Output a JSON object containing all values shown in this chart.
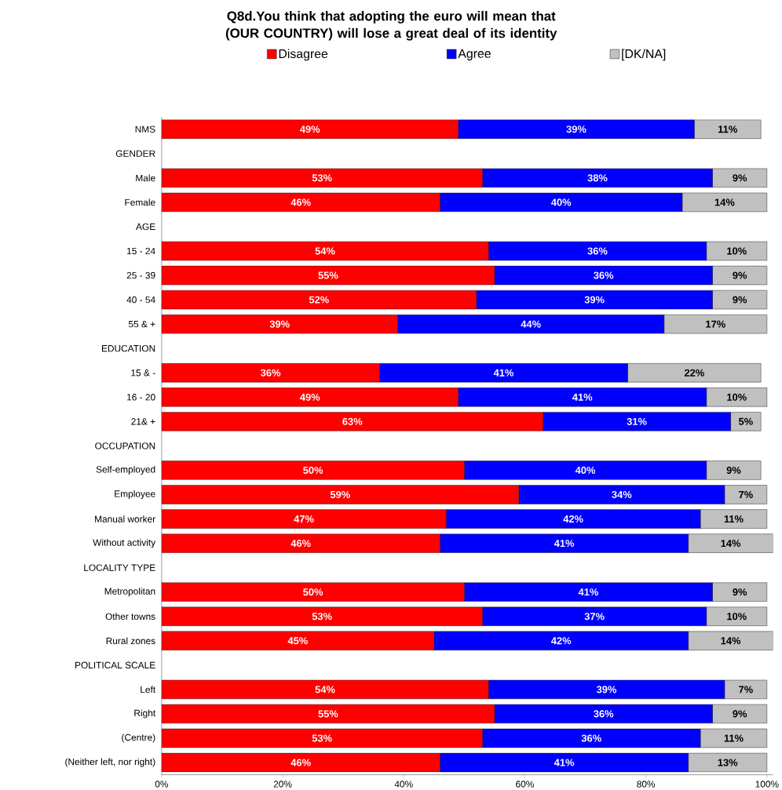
{
  "chart_data": {
    "type": "bar",
    "orientation": "horizontal",
    "stacked": true,
    "title": "Q8d.You think that adopting the euro will mean that (OUR COUNTRY) will lose a great deal of its identity",
    "categories": [
      "NMS",
      "GENDER",
      "Male",
      "Female",
      "AGE",
      "15 - 24",
      "25 - 39",
      "40 - 54",
      "55 & +",
      "EDUCATION",
      "15 & -",
      "16 - 20",
      "21& +",
      "OCCUPATION",
      "Self-employed",
      "Employee",
      "Manual worker",
      "Without activity",
      "LOCALITY TYPE",
      "Metropolitan",
      "Other towns",
      "Rural zones",
      "POLITICAL SCALE",
      "Left",
      "Right",
      "(Centre)",
      "(Neither left, nor right)"
    ],
    "series": [
      {
        "name": "Disagree",
        "color": "#ff0000",
        "values": [
          49,
          null,
          53,
          46,
          null,
          54,
          55,
          52,
          39,
          null,
          36,
          49,
          63,
          null,
          50,
          59,
          47,
          46,
          null,
          50,
          53,
          45,
          null,
          54,
          55,
          53,
          46
        ],
        "value_labels": [
          "49%",
          null,
          "53%",
          "46%",
          null,
          "54%",
          "55%",
          "52%",
          "39%",
          null,
          "36%",
          "49%",
          "63%",
          null,
          "50%",
          "59%",
          "47%",
          "46%",
          null,
          "50%",
          "53%",
          "45%",
          null,
          "54%",
          "55%",
          "53%",
          "46%"
        ]
      },
      {
        "name": "Agree",
        "color": "#0000ff",
        "values": [
          39,
          null,
          38,
          40,
          null,
          36,
          36,
          39,
          44,
          null,
          41,
          41,
          31,
          null,
          40,
          34,
          42,
          41,
          null,
          41,
          37,
          42,
          null,
          39,
          36,
          36,
          41
        ],
        "value_labels": [
          "39%",
          null,
          "38%",
          "40%",
          null,
          "36%",
          "36%",
          "39%",
          "44%",
          null,
          "41%",
          "41%",
          "31%",
          null,
          "40%",
          "34%",
          "42%",
          "41%",
          null,
          "41%",
          "37%",
          "42%",
          null,
          "39%",
          "36%",
          "36%",
          "41%"
        ]
      },
      {
        "name": "[DK/NA]",
        "color": "#c0c0c0",
        "values": [
          11,
          null,
          9,
          14,
          null,
          10,
          9,
          9,
          17,
          null,
          22,
          10,
          5,
          null,
          9,
          7,
          11,
          14,
          null,
          9,
          10,
          14,
          null,
          7,
          9,
          11,
          13
        ],
        "value_labels": [
          "11%",
          null,
          "9%",
          "14%",
          null,
          "10%",
          "9%",
          "9%",
          "17%",
          null,
          "22%",
          "10%",
          "5%",
          null,
          "9%",
          "7%",
          "11%",
          "14%",
          null,
          "9%",
          "10%",
          "14%",
          null,
          "7%",
          "9%",
          "11%",
          "13%"
        ]
      }
    ],
    "xlim": [
      0,
      101
    ],
    "xticks": [
      {
        "value": 0,
        "label": "0%"
      },
      {
        "value": 20,
        "label": "20%"
      },
      {
        "value": 40,
        "label": "40%"
      },
      {
        "value": 60,
        "label": "60%"
      },
      {
        "value": 80,
        "label": "80%"
      },
      {
        "value": 100,
        "label": "100%"
      }
    ],
    "legend": "top",
    "grid": false
  }
}
